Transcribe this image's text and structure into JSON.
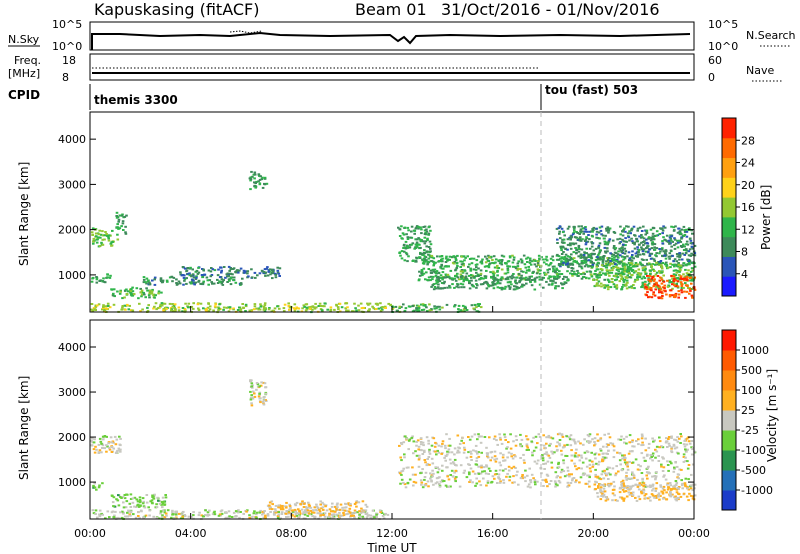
{
  "header": {
    "station": "Kapuskasing (fitACF)",
    "beam": "Beam 01",
    "dates": "31/Oct/2016 - 01/Nov/2016"
  },
  "top_panels": {
    "nsky_label": "N.Sky",
    "nsky_ticks": [
      "10^5",
      "10^0"
    ],
    "nsearch_label": "N.Search",
    "nsearch_ticks": [
      "10^5",
      "10^0"
    ],
    "freq_label": "Freq.",
    "freq_unit": "[MHz]",
    "freq_ticks": [
      "18",
      "8"
    ],
    "nave_label": "Nave",
    "nave_ticks": [
      "60",
      "0"
    ],
    "cpid_label": "CPID",
    "cpid_segments": [
      {
        "label": "themis 3300",
        "start_hour": 0
      },
      {
        "label": "tou (fast) 503",
        "start_hour": 18
      }
    ]
  },
  "colors": {
    "power": [
      "#1b1bff",
      "#2a55b8",
      "#3d8a5a",
      "#2fb54a",
      "#93c832",
      "#ffd21a",
      "#ffa010",
      "#ff6a00",
      "#ff2200"
    ],
    "velocity": [
      "#1b3cc9",
      "#2470b8",
      "#2a9450",
      "#6acf3a",
      "#c8c8c0",
      "#ffb020",
      "#ff8a10",
      "#ff5a00",
      "#ff1800"
    ]
  },
  "chart_data": [
    {
      "type": "heatmap",
      "panel": "power",
      "xlabel": "",
      "ylabel": "Slant Range [km]",
      "xlim": [
        0,
        24
      ],
      "ylim": [
        180,
        4600
      ],
      "yticks": [
        1000,
        2000,
        3000,
        4000
      ],
      "grid": false,
      "colorbar": {
        "label": "Power [dB]",
        "ticks": [
          "28",
          "24",
          "20",
          "16",
          "12",
          "8",
          "4"
        ],
        "range": [
          0,
          32
        ]
      },
      "regions": [
        {
          "x": [
            0.0,
            1.1
          ],
          "y": [
            1650,
            2050
          ],
          "value": 14
        },
        {
          "x": [
            1.0,
            1.4
          ],
          "y": [
            1900,
            2400
          ],
          "value": 10
        },
        {
          "x": [
            0.0,
            0.8
          ],
          "y": [
            850,
            1050
          ],
          "value": 10
        },
        {
          "x": [
            0.8,
            2.8
          ],
          "y": [
            500,
            750
          ],
          "value": 13
        },
        {
          "x": [
            2.0,
            6.0
          ],
          "y": [
            800,
            1000
          ],
          "value": 9
        },
        {
          "x": [
            6.3,
            7.0
          ],
          "y": [
            2900,
            3300
          ],
          "value": 10
        },
        {
          "x": [
            3.5,
            7.5
          ],
          "y": [
            950,
            1200
          ],
          "value": 8
        },
        {
          "x": [
            0.0,
            12.0
          ],
          "y": [
            200,
            400
          ],
          "value": 16
        },
        {
          "x": [
            12.0,
            15.5
          ],
          "y": [
            200,
            380
          ],
          "value": 12
        },
        {
          "x": [
            12.2,
            13.5
          ],
          "y": [
            1300,
            2100
          ],
          "value": 11
        },
        {
          "x": [
            13.0,
            21.5
          ],
          "y": [
            900,
            1450
          ],
          "value": 12
        },
        {
          "x": [
            13.5,
            19.0
          ],
          "y": [
            700,
            1000
          ],
          "value": 10
        },
        {
          "x": [
            18.5,
            24.0
          ],
          "y": [
            1200,
            2100
          ],
          "value": 9
        },
        {
          "x": [
            20.0,
            24.0
          ],
          "y": [
            700,
            1300
          ],
          "value": 14
        },
        {
          "x": [
            22.0,
            24.0
          ],
          "y": [
            500,
            1000
          ],
          "value": 28
        }
      ]
    },
    {
      "type": "heatmap",
      "panel": "velocity",
      "xlabel": "Time UT",
      "ylabel": "Slant Range [km]",
      "xlim": [
        0,
        24
      ],
      "ylim": [
        180,
        4600
      ],
      "yticks": [
        1000,
        2000,
        3000,
        4000
      ],
      "xticks": [
        "00:00",
        "04:00",
        "08:00",
        "12:00",
        "16:00",
        "20:00",
        "00:00"
      ],
      "grid": false,
      "colorbar": {
        "label": "Velocity [m s⁻¹]",
        "ticks": [
          "1000",
          "500",
          "100",
          "25",
          "-25",
          "-100",
          "-500",
          "-1000"
        ],
        "range": [
          -1500,
          1500
        ]
      },
      "regions": [
        {
          "x": [
            0.0,
            1.2
          ],
          "y": [
            1650,
            2050
          ],
          "value": 0
        },
        {
          "x": [
            0.0,
            0.5
          ],
          "y": [
            850,
            1000
          ],
          "value": -250
        },
        {
          "x": [
            0.8,
            3.0
          ],
          "y": [
            450,
            750
          ],
          "value": -250
        },
        {
          "x": [
            6.3,
            7.0
          ],
          "y": [
            2700,
            3300
          ],
          "value": 0
        },
        {
          "x": [
            0.0,
            12.0
          ],
          "y": [
            200,
            400
          ],
          "value": -50
        },
        {
          "x": [
            7.0,
            11.0
          ],
          "y": [
            250,
            600
          ],
          "value": 150
        },
        {
          "x": [
            12.2,
            24.0
          ],
          "y": [
            900,
            2100
          ],
          "value": 0
        },
        {
          "x": [
            20.0,
            24.0
          ],
          "y": [
            600,
            1000
          ],
          "value": 150
        }
      ]
    }
  ]
}
